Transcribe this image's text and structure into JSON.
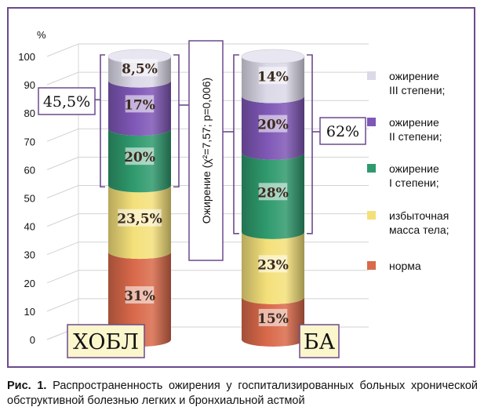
{
  "chart_data": {
    "type": "bar",
    "subtype": "stacked-cylinder",
    "y_unit_label": "%",
    "yticks": [
      0,
      10,
      20,
      30,
      40,
      50,
      60,
      70,
      80,
      90,
      100
    ],
    "ylim": [
      0,
      100
    ],
    "grid": true,
    "categories": [
      "ХОБЛ",
      "БА"
    ],
    "series": [
      {
        "name": "норма",
        "values": [
          31,
          15
        ],
        "labels": [
          "31%",
          "15%"
        ],
        "color": "#d9694a"
      },
      {
        "name": "избыточная\nмасса тела;",
        "values": [
          23.5,
          23
        ],
        "labels": [
          "23,5%",
          "23%"
        ],
        "color": "#f4e07a"
      },
      {
        "name": "ожирение\nI степени;",
        "values": [
          20,
          28
        ],
        "labels": [
          "20%",
          "28%"
        ],
        "color": "#2f9a6d"
      },
      {
        "name": "ожирение\nII степени;",
        "values": [
          17,
          20
        ],
        "labels": [
          "17%",
          "20%"
        ],
        "color": "#7f57b6"
      },
      {
        "name": "ожирение\nIII степени;",
        "values": [
          8.5,
          14
        ],
        "labels": [
          "8,5%",
          "14%"
        ],
        "color": "#dcd9e8"
      }
    ],
    "totals": [
      "45,5%",
      "62%"
    ],
    "annotation": "Ожирение (χ²=7,57; p=0,006)",
    "legend_position": "right"
  },
  "caption": {
    "label": "Рис. 1.",
    "text": "Распространенность ожирения у госпитализированных больных хронической обструктивной болезнью легких и бронхиальной астмой"
  }
}
